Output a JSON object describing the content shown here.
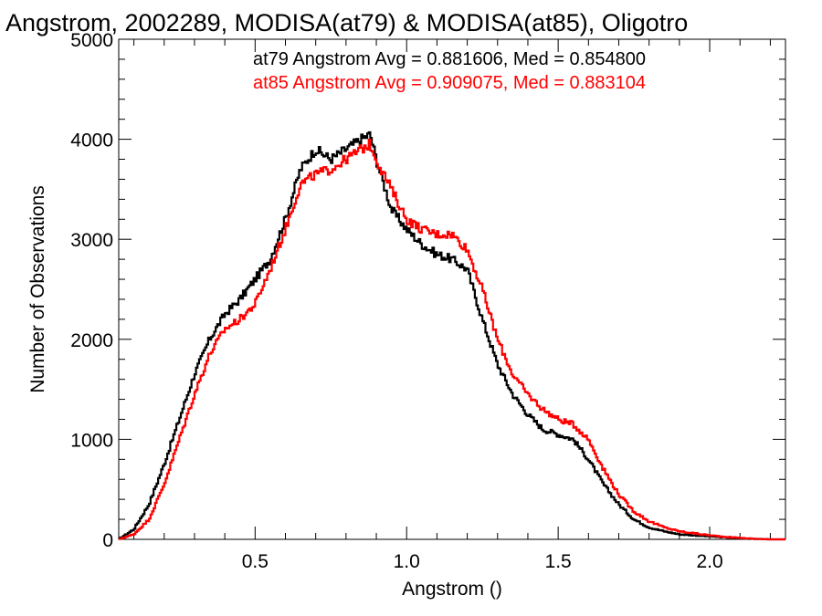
{
  "chart_data": {
    "type": "line",
    "title": "Angstrom, 2002289, MODISA(at79) & MODISA(at85), Oligotro",
    "xlabel": "Angstrom ()",
    "ylabel": "Number of Observations",
    "xlim": [
      0.05,
      2.25
    ],
    "ylim": [
      0,
      5000
    ],
    "x_ticks": [
      0.5,
      1.0,
      1.5,
      2.0
    ],
    "x_tick_labels": [
      "0.5",
      "1.0",
      "1.5",
      "2.0"
    ],
    "y_ticks": [
      0,
      1000,
      2000,
      3000,
      4000,
      5000
    ],
    "y_tick_labels": [
      "0",
      "1000",
      "2000",
      "3000",
      "4000",
      "5000"
    ],
    "grid": false,
    "annotations": [
      {
        "text": "at79 Angstrom Avg = 0.881606, Med = 0.854800",
        "color": "#000000"
      },
      {
        "text": "at85 Angstrom Avg = 0.909075, Med = 0.883104",
        "color": "#ff0000"
      }
    ],
    "series": [
      {
        "color": "#000000",
        "x": [
          0.05,
          0.1,
          0.15,
          0.2,
          0.25,
          0.3,
          0.35,
          0.4,
          0.45,
          0.5,
          0.55,
          0.6,
          0.65,
          0.7,
          0.75,
          0.8,
          0.85,
          0.88,
          0.9,
          0.95,
          1.0,
          1.05,
          1.1,
          1.15,
          1.2,
          1.25,
          1.3,
          1.35,
          1.4,
          1.45,
          1.5,
          1.55,
          1.6,
          1.65,
          1.7,
          1.75,
          1.8,
          1.85,
          1.9,
          1.95,
          2.0,
          2.05,
          2.1,
          2.15,
          2.2,
          2.25
        ],
        "y": [
          0,
          100,
          350,
          750,
          1200,
          1650,
          2000,
          2250,
          2400,
          2600,
          2800,
          3200,
          3700,
          3900,
          3800,
          3900,
          4000,
          4050,
          3800,
          3300,
          3100,
          2950,
          2850,
          2800,
          2700,
          2200,
          1750,
          1450,
          1250,
          1100,
          1050,
          1000,
          800,
          550,
          350,
          200,
          120,
          80,
          50,
          40,
          30,
          20,
          10,
          5,
          0,
          0
        ]
      },
      {
        "color": "#ff0000",
        "x": [
          0.05,
          0.1,
          0.15,
          0.2,
          0.25,
          0.3,
          0.35,
          0.4,
          0.45,
          0.5,
          0.55,
          0.6,
          0.65,
          0.7,
          0.75,
          0.8,
          0.85,
          0.88,
          0.9,
          0.95,
          1.0,
          1.05,
          1.1,
          1.15,
          1.2,
          1.25,
          1.3,
          1.35,
          1.4,
          1.45,
          1.5,
          1.55,
          1.6,
          1.65,
          1.7,
          1.75,
          1.8,
          1.85,
          1.9,
          1.95,
          2.0,
          2.05,
          2.1,
          2.15,
          2.2,
          2.25
        ],
        "y": [
          0,
          50,
          200,
          550,
          1000,
          1450,
          1850,
          2100,
          2200,
          2350,
          2700,
          3100,
          3550,
          3650,
          3700,
          3800,
          3900,
          3950,
          3800,
          3500,
          3200,
          3100,
          3050,
          3050,
          2900,
          2500,
          2000,
          1650,
          1450,
          1300,
          1200,
          1150,
          1000,
          700,
          450,
          280,
          180,
          120,
          80,
          60,
          40,
          25,
          15,
          5,
          0,
          0
        ]
      }
    ]
  }
}
